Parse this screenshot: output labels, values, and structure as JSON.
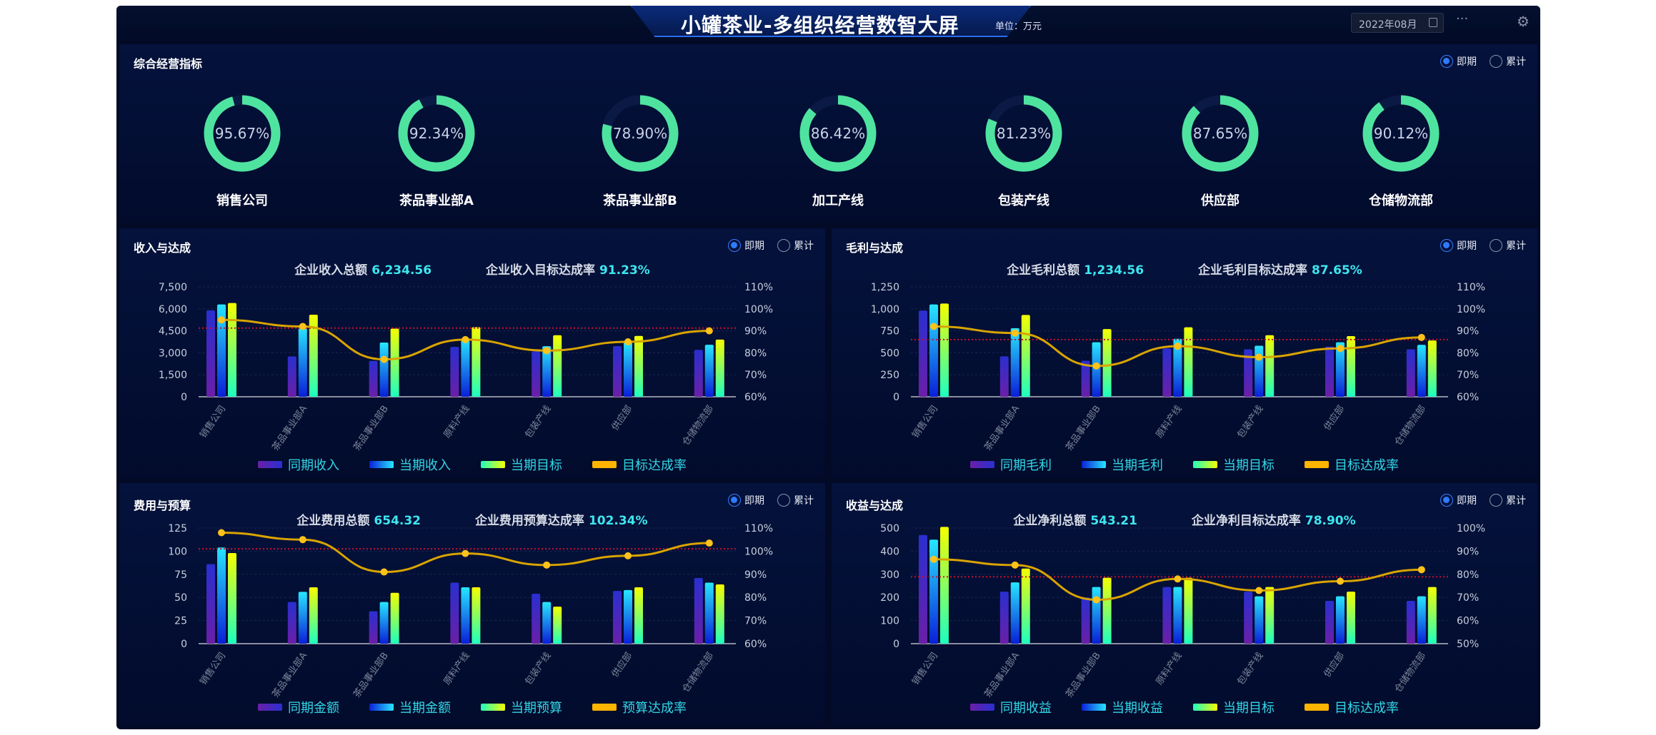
{
  "header": {
    "title": "小罐茶业-多组织经营数智大屏",
    "unit": "单位：万元",
    "date": "2022年08月"
  },
  "radio": {
    "current": "即期",
    "cumulative": "累计"
  },
  "kpi": {
    "title": "综合经营指标",
    "items": [
      {
        "label": "销售公司",
        "value": "95.67%",
        "ratio": 0.9567
      },
      {
        "label": "茶品事业部A",
        "value": "92.34%",
        "ratio": 0.9234
      },
      {
        "label": "茶品事业部B",
        "value": "78.90%",
        "ratio": 0.789
      },
      {
        "label": "加工产线",
        "value": "86.42%",
        "ratio": 0.8642
      },
      {
        "label": "包装产线",
        "value": "81.23%",
        "ratio": 0.8123
      },
      {
        "label": "供应部",
        "value": "87.65%",
        "ratio": 0.8765
      },
      {
        "label": "仓储物流部",
        "value": "90.12%",
        "ratio": 0.9012
      }
    ]
  },
  "colors": {
    "ring": "#4fe3a0",
    "line": "#d9a400",
    "point": "#ffc21a",
    "ref": "#c8102e",
    "legend_text": "#33d6e6",
    "value": "#3ee6ef"
  },
  "chart_data": [
    {
      "type": "bar+line",
      "title": "收入与达成",
      "summary": [
        {
          "label": "企业收入总额",
          "value": "6,234.56"
        },
        {
          "label": "企业收入目标达成率",
          "value": "91.23%"
        }
      ],
      "categories": [
        "销售公司",
        "茶品事业部A",
        "茶品事业部B",
        "原料产线",
        "包装产线",
        "供应部",
        "仓储物流部"
      ],
      "y_left": {
        "min": 0,
        "max": 7500,
        "ticks": [
          "0",
          "1,500",
          "3,000",
          "4,500",
          "6,000",
          "7,500"
        ]
      },
      "y_right": {
        "min": 60,
        "max": 110,
        "ticks": [
          "60%",
          "70%",
          "80%",
          "90%",
          "100%",
          "110%"
        ]
      },
      "series": [
        {
          "name": "同期收入",
          "values": [
            5900,
            2750,
            2450,
            3400,
            3100,
            3450,
            3200
          ]
        },
        {
          "name": "当期收入",
          "values": [
            6300,
            4800,
            3700,
            4000,
            3450,
            3750,
            3550
          ]
        },
        {
          "name": "当期目标",
          "values": [
            6400,
            5600,
            4650,
            4750,
            4200,
            4150,
            3900
          ]
        },
        {
          "name": "目标达成率",
          "axis": "right",
          "values": [
            95,
            92,
            77,
            86,
            81,
            85,
            90
          ]
        }
      ],
      "reference": 91.23
    },
    {
      "type": "bar+line",
      "title": "毛利与达成",
      "summary": [
        {
          "label": "企业毛利总额",
          "value": "1,234.56"
        },
        {
          "label": "企业毛利目标达成率",
          "value": "87.65%"
        }
      ],
      "categories": [
        "销售公司",
        "茶品事业部A",
        "茶品事业部B",
        "原料产线",
        "包装产线",
        "供应部",
        "仓储物流部"
      ],
      "y_left": {
        "min": 0,
        "max": 1250,
        "ticks": [
          "0",
          "250",
          "500",
          "750",
          "1,000",
          "1,250"
        ]
      },
      "y_right": {
        "min": 60,
        "max": 110,
        "ticks": [
          "60%",
          "70%",
          "80%",
          "90%",
          "100%",
          "110%"
        ]
      },
      "series": [
        {
          "name": "同期毛利",
          "values": [
            980,
            460,
            410,
            550,
            540,
            570,
            540
          ]
        },
        {
          "name": "当期毛利",
          "values": [
            1050,
            780,
            620,
            660,
            580,
            620,
            590
          ]
        },
        {
          "name": "当期目标",
          "values": [
            1060,
            930,
            770,
            790,
            700,
            690,
            640
          ]
        },
        {
          "name": "目标达成率",
          "axis": "right",
          "values": [
            92,
            89,
            74,
            83,
            78,
            82,
            87
          ]
        }
      ],
      "reference": 86
    },
    {
      "type": "bar+line",
      "title": "费用与预算",
      "summary": [
        {
          "label": "企业费用总额",
          "value": "654.32"
        },
        {
          "label": "企业费用预算达成率",
          "value": "102.34%"
        }
      ],
      "categories": [
        "销售公司",
        "茶品事业部A",
        "茶品事业部B",
        "原料产线",
        "包装产线",
        "供应部",
        "仓储物流部"
      ],
      "y_left": {
        "min": 0,
        "max": 125,
        "ticks": [
          "0",
          "25",
          "50",
          "75",
          "100",
          "125"
        ]
      },
      "y_right": {
        "min": 60,
        "max": 110,
        "ticks": [
          "60%",
          "70%",
          "80%",
          "90%",
          "100%",
          "110%"
        ]
      },
      "series": [
        {
          "name": "同期金额",
          "values": [
            86,
            45,
            35,
            66,
            54,
            57,
            71
          ]
        },
        {
          "name": "当期金额",
          "values": [
            104,
            56,
            45,
            61,
            45,
            58,
            66
          ]
        },
        {
          "name": "当期预算",
          "values": [
            98,
            61,
            55,
            61,
            40,
            61,
            64
          ]
        },
        {
          "name": "预算达成率",
          "axis": "right",
          "values": [
            108,
            105,
            91,
            99,
            94,
            98,
            103.5
          ]
        }
      ],
      "reference": 101
    },
    {
      "type": "bar+line",
      "title": "收益与达成",
      "summary": [
        {
          "label": "企业净利总额",
          "value": "543.21"
        },
        {
          "label": "企业净利目标达成率",
          "value": "78.90%"
        }
      ],
      "categories": [
        "销售公司",
        "茶品事业部A",
        "茶品事业部B",
        "原料产线",
        "包装产线",
        "供应部",
        "仓储物流部"
      ],
      "y_left": {
        "min": 0,
        "max": 500,
        "ticks": [
          "0",
          "100",
          "200",
          "300",
          "400",
          "500"
        ]
      },
      "y_right": {
        "min": 50,
        "max": 100,
        "ticks": [
          "50%",
          "60%",
          "70%",
          "80%",
          "90%",
          "100%"
        ]
      },
      "series": [
        {
          "name": "同期收益",
          "values": [
            470,
            225,
            200,
            245,
            225,
            185,
            185
          ]
        },
        {
          "name": "当期收益",
          "values": [
            450,
            265,
            245,
            245,
            205,
            205,
            205
          ]
        },
        {
          "name": "当期目标",
          "values": [
            505,
            325,
            285,
            285,
            245,
            225,
            245
          ]
        },
        {
          "name": "目标达成率",
          "axis": "right",
          "values": [
            86.5,
            84,
            69,
            78,
            73,
            77,
            82
          ]
        }
      ],
      "reference": 78.9
    }
  ]
}
